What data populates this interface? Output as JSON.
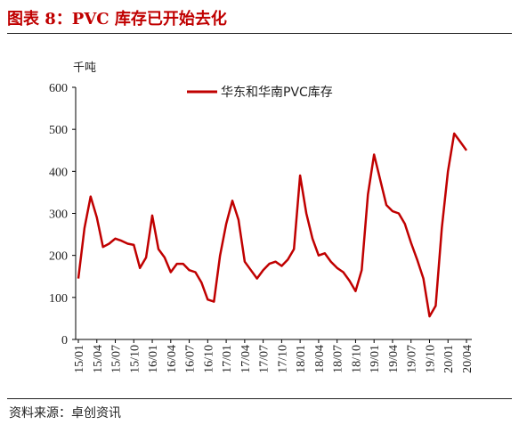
{
  "header": {
    "title": "图表 8：PVC 库存已开始去化"
  },
  "footer": {
    "source": "资料来源：卓创资讯"
  },
  "colors": {
    "series": "#c00000",
    "title": "#c00000"
  },
  "chart_data": {
    "type": "line",
    "unit_label": "千吨",
    "ylim": [
      0,
      600
    ],
    "y_ticks": [
      "0",
      "100",
      "200",
      "300",
      "400",
      "500",
      "600"
    ],
    "x_ticks": [
      "15/01",
      "15/04",
      "15/07",
      "15/10",
      "16/01",
      "16/04",
      "16/07",
      "16/10",
      "17/01",
      "17/04",
      "17/07",
      "17/10",
      "18/01",
      "18/04",
      "18/07",
      "18/10",
      "19/01",
      "19/04",
      "19/07",
      "19/10",
      "20/01",
      "20/04"
    ],
    "legend_position": "top-right",
    "grid": false,
    "series": [
      {
        "name": "华东和华南PVC库存",
        "x": [
          "15/01",
          "15/02",
          "15/03",
          "15/04",
          "15/05",
          "15/06",
          "15/07",
          "15/08",
          "15/09",
          "15/10",
          "15/11",
          "15/12",
          "16/01",
          "16/02",
          "16/03",
          "16/04",
          "16/05",
          "16/06",
          "16/07",
          "16/08",
          "16/09",
          "16/10",
          "16/11",
          "16/12",
          "17/01",
          "17/02",
          "17/03",
          "17/04",
          "17/05",
          "17/06",
          "17/07",
          "17/08",
          "17/09",
          "17/10",
          "17/11",
          "17/12",
          "18/01",
          "18/02",
          "18/03",
          "18/04",
          "18/05",
          "18/06",
          "18/07",
          "18/08",
          "18/09",
          "18/10",
          "18/11",
          "18/12",
          "19/01",
          "19/02",
          "19/03",
          "19/04",
          "19/05",
          "19/06",
          "19/07",
          "19/08",
          "19/09",
          "19/10",
          "19/11",
          "19/12",
          "20/01",
          "20/02",
          "20/03",
          "20/04"
        ],
        "values": [
          145,
          265,
          340,
          290,
          220,
          228,
          240,
          235,
          228,
          225,
          170,
          195,
          295,
          215,
          195,
          160,
          180,
          180,
          165,
          160,
          135,
          95,
          90,
          200,
          275,
          330,
          285,
          185,
          165,
          145,
          165,
          180,
          185,
          175,
          190,
          215,
          390,
          300,
          240,
          200,
          205,
          185,
          170,
          160,
          140,
          115,
          165,
          345,
          440,
          380,
          320,
          305,
          300,
          275,
          230,
          190,
          145,
          55,
          80,
          265,
          400,
          490,
          470,
          450
        ]
      }
    ]
  }
}
